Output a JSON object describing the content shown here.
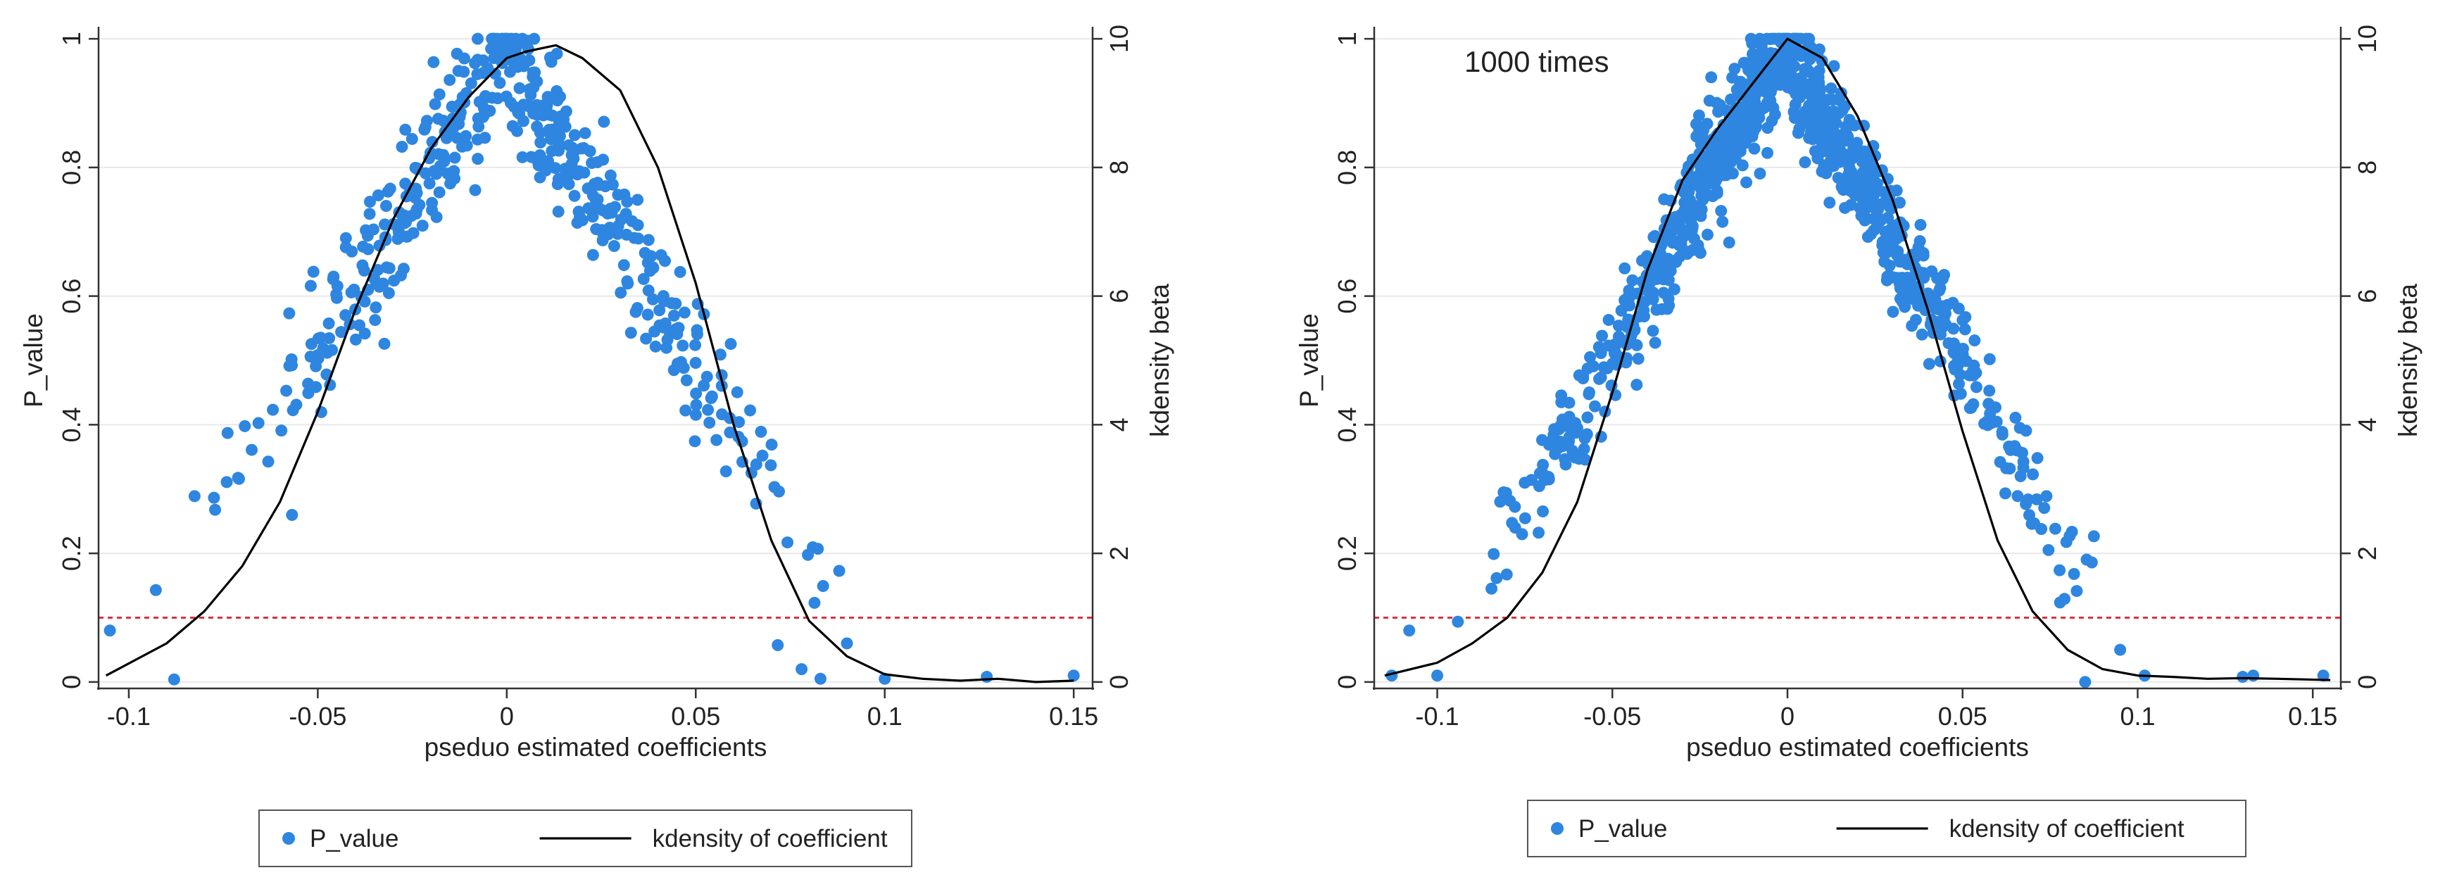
{
  "chart_data": [
    {
      "type": "scatter",
      "annotation": "",
      "xlabel": "pseduo estimated coefficients",
      "ylabel_left": "P_value",
      "ylabel_right": "kdensity beta",
      "xlim": [
        -0.108,
        0.155
      ],
      "ylim_left": [
        -0.01,
        1.01
      ],
      "ylim_right": [
        -0.1,
        10.1
      ],
      "xticks": [
        -0.1,
        -0.05,
        0,
        0.05,
        0.1,
        0.15
      ],
      "xtick_labels": [
        "-0.1",
        "-0.05",
        "0",
        "0.05",
        "0.1",
        "0.15"
      ],
      "yticks_left": [
        0,
        0.2,
        0.4,
        0.6,
        0.8,
        1
      ],
      "ytick_labels_left": [
        "0",
        "0.2",
        "0.4",
        "0.6",
        "0.8",
        "1"
      ],
      "yticks_right": [
        0,
        2,
        4,
        6,
        8,
        10
      ],
      "ytick_labels_right": [
        "0",
        "2",
        "4",
        "6",
        "8",
        "10"
      ],
      "grid": true,
      "reference_line": {
        "y": 0.1,
        "style": "dashed",
        "color": "#e0303f"
      },
      "legend": {
        "placement": "bottom",
        "entries": [
          "P_value",
          "kdensity of coefficient"
        ]
      },
      "series": [
        {
          "name": "P_value",
          "type": "scatter",
          "axis": "left",
          "color": "#2e86e0",
          "n_points": 500,
          "shape": "p-value falls linearly from 1 at x=0 to about 0.05 near |x|=0.1",
          "tail_points": [
            [
              -0.105,
              0.08
            ],
            [
              -0.088,
              0.004
            ],
            [
              0.078,
              0.02
            ],
            [
              0.083,
              0.005
            ],
            [
              0.09,
              0.06
            ],
            [
              0.1,
              0.005
            ],
            [
              0.127,
              0.008
            ],
            [
              0.15,
              0.01
            ]
          ]
        },
        {
          "name": "kdensity of coefficient",
          "type": "line",
          "axis": "right",
          "color": "#000000",
          "x": [
            -0.106,
            -0.09,
            -0.08,
            -0.07,
            -0.06,
            -0.05,
            -0.04,
            -0.03,
            -0.02,
            -0.01,
            0,
            0.005,
            0.013,
            0.02,
            0.03,
            0.04,
            0.05,
            0.06,
            0.07,
            0.08,
            0.09,
            0.1,
            0.11,
            0.12,
            0.13,
            0.14,
            0.15
          ],
          "y": [
            0.1,
            0.6,
            1.1,
            1.8,
            2.8,
            4.2,
            5.8,
            7.2,
            8.3,
            9.1,
            9.7,
            9.8,
            9.9,
            9.7,
            9.2,
            8.0,
            6.2,
            4.0,
            2.2,
            0.95,
            0.4,
            0.12,
            0.05,
            0.02,
            0.05,
            0.0,
            0.02
          ]
        }
      ]
    },
    {
      "type": "scatter",
      "annotation": "1000 times",
      "xlabel": "pseduo estimated coefficients",
      "ylabel_left": "P_value",
      "ylabel_right": "kdensity beta",
      "xlim": [
        -0.118,
        0.158
      ],
      "ylim_left": [
        -0.01,
        1.01
      ],
      "ylim_right": [
        -0.1,
        10.1
      ],
      "xticks": [
        -0.1,
        -0.05,
        0,
        0.05,
        0.1,
        0.15
      ],
      "xtick_labels": [
        "-0.1",
        "-0.05",
        "0",
        "0.05",
        "0.1",
        "0.15"
      ],
      "yticks_left": [
        0,
        0.2,
        0.4,
        0.6,
        0.8,
        1
      ],
      "ytick_labels_left": [
        "0",
        "0.2",
        "0.4",
        "0.6",
        "0.8",
        "1"
      ],
      "yticks_right": [
        0,
        2,
        4,
        6,
        8,
        10
      ],
      "ytick_labels_right": [
        "0",
        "2",
        "4",
        "6",
        "8",
        "10"
      ],
      "grid": true,
      "reference_line": {
        "y": 0.1,
        "style": "dashed",
        "color": "#e0303f"
      },
      "legend": {
        "placement": "bottom",
        "entries": [
          "P_value",
          "kdensity of coefficient"
        ]
      },
      "series": [
        {
          "name": "P_value",
          "type": "scatter",
          "axis": "left",
          "color": "#2e86e0",
          "n_points": 1000,
          "shape": "p-value falls linearly from 1 at x=0 to about 0.05 near |x|=0.1",
          "tail_points": [
            [
              -0.113,
              0.01
            ],
            [
              -0.108,
              0.08
            ],
            [
              -0.1,
              0.01
            ],
            [
              0.085,
              0.0
            ],
            [
              0.095,
              0.05
            ],
            [
              0.102,
              0.01
            ],
            [
              0.13,
              0.008
            ],
            [
              0.133,
              0.01
            ],
            [
              0.153,
              0.01
            ]
          ]
        },
        {
          "name": "kdensity of coefficient",
          "type": "line",
          "axis": "right",
          "color": "#000000",
          "x": [
            -0.115,
            -0.1,
            -0.09,
            -0.08,
            -0.07,
            -0.06,
            -0.05,
            -0.04,
            -0.03,
            -0.02,
            -0.01,
            0,
            0.01,
            0.02,
            0.03,
            0.04,
            0.05,
            0.06,
            0.07,
            0.08,
            0.09,
            0.1,
            0.11,
            0.12,
            0.13,
            0.14,
            0.155
          ],
          "y": [
            0.1,
            0.3,
            0.6,
            1.0,
            1.7,
            2.8,
            4.5,
            6.4,
            7.8,
            8.6,
            9.3,
            10.0,
            9.7,
            8.8,
            7.5,
            5.8,
            3.9,
            2.2,
            1.1,
            0.5,
            0.2,
            0.1,
            0.08,
            0.05,
            0.06,
            0.05,
            0.03
          ]
        }
      ]
    }
  ]
}
